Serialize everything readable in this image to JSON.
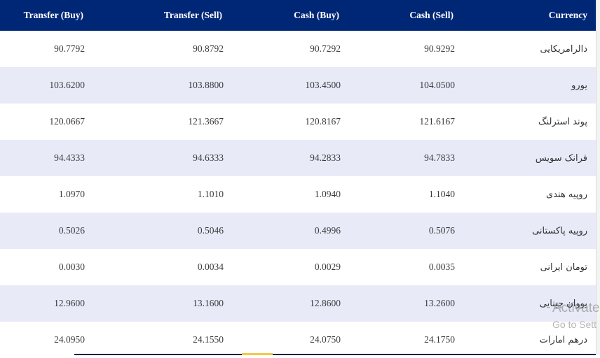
{
  "table": {
    "headers": {
      "transfer_buy": "Transfer (Buy)",
      "transfer_sell": "Transfer (Sell)",
      "cash_buy": "Cash (Buy)",
      "cash_sell": "Cash (Sell)",
      "currency": "Currency"
    },
    "rows": [
      {
        "transfer_buy": "90.7792",
        "transfer_sell": "90.8792",
        "cash_buy": "90.7292",
        "cash_sell": "90.9292",
        "currency": "دالرامریکایی"
      },
      {
        "transfer_buy": "103.6200",
        "transfer_sell": "103.8800",
        "cash_buy": "103.4500",
        "cash_sell": "104.0500",
        "currency": "یورو"
      },
      {
        "transfer_buy": "120.0667",
        "transfer_sell": "121.3667",
        "cash_buy": "120.8167",
        "cash_sell": "121.6167",
        "currency": "پوند استرلنگ"
      },
      {
        "transfer_buy": "94.4333",
        "transfer_sell": "94.6333",
        "cash_buy": "94.2833",
        "cash_sell": "94.7833",
        "currency": "فرانک سویس"
      },
      {
        "transfer_buy": "1.0970",
        "transfer_sell": "1.1010",
        "cash_buy": "1.0940",
        "cash_sell": "1.1040",
        "currency": "روپیه هندی"
      },
      {
        "transfer_buy": "0.5026",
        "transfer_sell": "0.5046",
        "cash_buy": "0.4996",
        "cash_sell": "0.5076",
        "currency": "روپیه پاکستانی"
      },
      {
        "transfer_buy": "0.0030",
        "transfer_sell": "0.0034",
        "cash_buy": "0.0029",
        "cash_sell": "0.0035",
        "currency": "تومان ایرانی"
      },
      {
        "transfer_buy": "12.9600",
        "transfer_sell": "13.1600",
        "cash_buy": "12.8600",
        "cash_sell": "13.2600",
        "currency": "یووان چینایی"
      },
      {
        "transfer_buy": "24.0950",
        "transfer_sell": "24.1550",
        "cash_buy": "24.0750",
        "cash_sell": "24.1750",
        "currency": "درهم امارات"
      }
    ]
  },
  "watermark": {
    "line1": "Activate",
    "line2": "Go to Sett"
  },
  "colors": {
    "header_bg": "#002776",
    "header_text": "#ffffff",
    "row_alt_bg": "#e8eaf8",
    "row_bg": "#ffffff"
  }
}
